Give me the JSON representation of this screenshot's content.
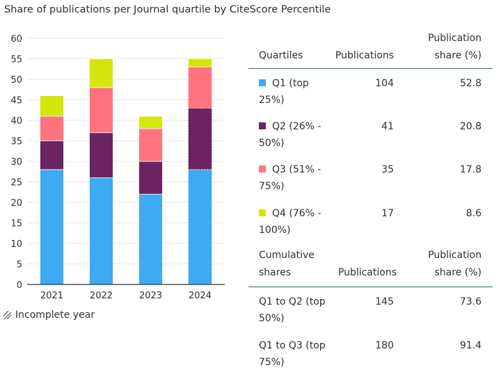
{
  "title": "Share of publications per Journal quartile by CiteScore Percentile",
  "incomplete_note": "Incomplete year",
  "colors": {
    "q1": "#3daaf2",
    "q2": "#6b2461",
    "q3": "#ff737f",
    "q4": "#d4e60c",
    "grid": "#e6e6e6",
    "axis": "#333333",
    "table_rule": "#2f6a6f"
  },
  "chart_data": {
    "type": "bar",
    "stacked": true,
    "categories": [
      "2021",
      "2022",
      "2023",
      "2024"
    ],
    "series": [
      {
        "name": "Q1 (top 25%)",
        "color_key": "q1",
        "values": [
          28,
          26,
          22,
          28
        ]
      },
      {
        "name": "Q2 (26% - 50%)",
        "color_key": "q2",
        "values": [
          7,
          11,
          8,
          15
        ]
      },
      {
        "name": "Q3 (51% - 75%)",
        "color_key": "q3",
        "values": [
          6,
          11,
          8,
          10
        ]
      },
      {
        "name": "Q4 (76% - 100%)",
        "color_key": "q4",
        "values": [
          5,
          7,
          3,
          2
        ]
      }
    ],
    "ylim": [
      0,
      60
    ],
    "yticks": [
      0,
      5,
      10,
      15,
      20,
      25,
      30,
      35,
      40,
      45,
      50,
      55,
      60
    ],
    "grid": true,
    "incomplete_years": [
      "2024"
    ]
  },
  "table": {
    "headers": {
      "col1": "Quartiles",
      "col2": "Publications",
      "col3_line1": "Publication",
      "col3_line2": "share (%)"
    },
    "rows": [
      {
        "swatch": "q1",
        "line1": "Q1 (top",
        "line2": "25%)",
        "publications": "104",
        "share": "52.8"
      },
      {
        "swatch": "q2",
        "line1": "Q2 (26% -",
        "line2": "50%)",
        "publications": "41",
        "share": "20.8"
      },
      {
        "swatch": "q3",
        "line1": "Q3 (51% -",
        "line2": "75%)",
        "publications": "35",
        "share": "17.8"
      },
      {
        "swatch": "q4",
        "line1": "Q4 (76% -",
        "line2": "100%)",
        "publications": "17",
        "share": "8.6"
      }
    ],
    "cumulative_headers": {
      "col1_line1": "Cumulative",
      "col1_line2": "shares",
      "col2": "Publications",
      "col3_line1": "Publication",
      "col3_line2": "share (%)"
    },
    "cumulative_rows": [
      {
        "line1": "Q1 to Q2 (top",
        "line2": "50%)",
        "publications": "145",
        "share": "73.6"
      },
      {
        "line1": "Q1 to Q3 (top",
        "line2": "75%)",
        "publications": "180",
        "share": "91.4"
      }
    ]
  }
}
